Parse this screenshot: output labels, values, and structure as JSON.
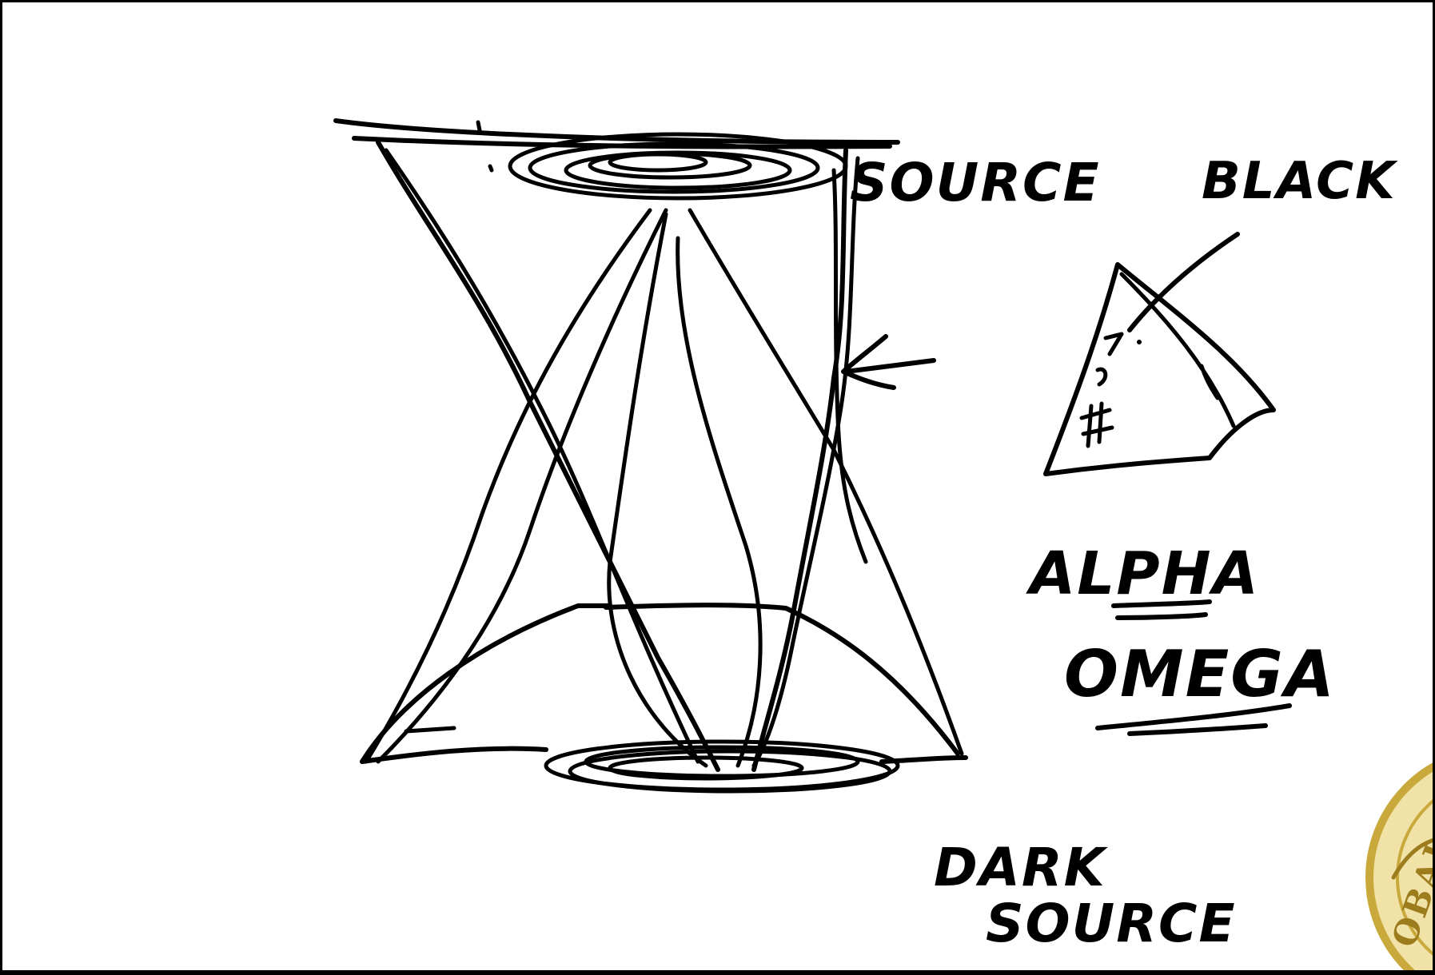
{
  "labels": {
    "source": "SOURCE",
    "black": "BLACK",
    "alpha": "ALPHA",
    "omega": "OMEGA",
    "dark_source_line1": "DARK",
    "dark_source_line2": "SOURCE",
    "triangle_note": "7 9 #"
  },
  "seal": {
    "text": "OBAL INTE"
  },
  "colors": {
    "ink": "#000000",
    "board": "#ffffff",
    "frame": "#000000",
    "seal_gold": "#c9a93c"
  }
}
